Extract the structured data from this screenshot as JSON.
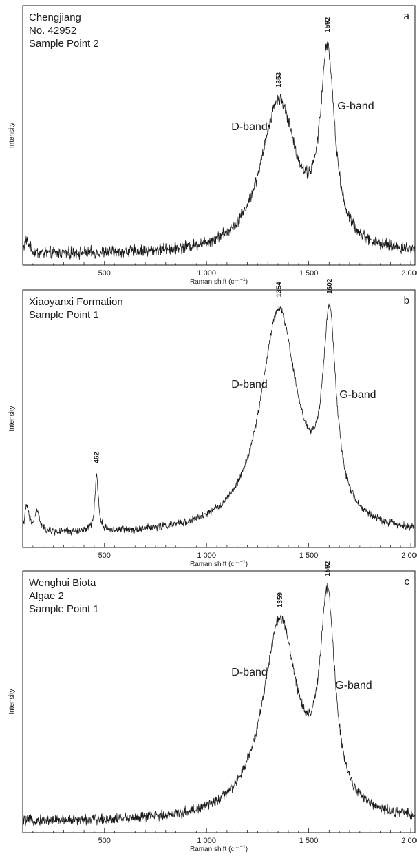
{
  "chart_data": [
    {
      "type": "line",
      "panel_letter": "a",
      "title_lines": [
        "Chengjiang",
        "No. 42952",
        "Sample Point 2"
      ],
      "xlabel": "Raman shift (cm",
      "xlabel_superscript": "−1",
      "xlabel_suffix": ")",
      "ylabel": "Intensity",
      "xlim": [
        100,
        2020
      ],
      "ylim": [
        0,
        1.0
      ],
      "xticks": [
        500,
        1000,
        1500,
        2000
      ],
      "xtick_labels": [
        "500",
        "1 000",
        "1 500",
        "2 000"
      ],
      "grid": false,
      "line_color": "#1a1a1a",
      "peaks": [
        {
          "x": 1353,
          "label": "1353"
        },
        {
          "x": 1592,
          "label": "1592"
        }
      ],
      "band_labels": [
        {
          "text": "D-band",
          "x": 1210,
          "y": 0.52
        },
        {
          "text": "G-band",
          "x": 1730,
          "y": 0.6
        }
      ],
      "series": [
        {
          "baseline": 0.04,
          "noise": 0.035,
          "components": [
            {
              "center": 1353,
              "height": 0.58,
              "width": 105
            },
            {
              "center": 1592,
              "height": 0.72,
              "width": 42
            },
            {
              "center": 120,
              "height": 0.05,
              "width": 15
            }
          ]
        }
      ]
    },
    {
      "type": "line",
      "panel_letter": "b",
      "title_lines": [
        "Xiaoyanxi Formation",
        "Sample Point 1"
      ],
      "xlabel": "Raman shift (cm",
      "xlabel_superscript": "−1",
      "xlabel_suffix": ")",
      "ylabel": "Intensity",
      "xlim": [
        100,
        2020
      ],
      "ylim": [
        0,
        1.0
      ],
      "xticks": [
        500,
        1000,
        1500,
        2000
      ],
      "xtick_labels": [
        "500",
        "1 000",
        "1 500",
        "2 000"
      ],
      "grid": false,
      "line_color": "#1a1a1a",
      "peaks": [
        {
          "x": 462,
          "label": "462"
        },
        {
          "x": 1354,
          "label": "1354"
        },
        {
          "x": 1602,
          "label": "1602"
        }
      ],
      "band_labels": [
        {
          "text": "D-band",
          "x": 1210,
          "y": 0.62
        },
        {
          "text": "G-band",
          "x": 1740,
          "y": 0.58
        }
      ],
      "series": [
        {
          "baseline": 0.05,
          "noise": 0.022,
          "components": [
            {
              "center": 1354,
              "height": 0.86,
              "width": 110
            },
            {
              "center": 1602,
              "height": 0.75,
              "width": 40
            },
            {
              "center": 462,
              "height": 0.22,
              "width": 10
            },
            {
              "center": 120,
              "height": 0.1,
              "width": 12
            },
            {
              "center": 170,
              "height": 0.08,
              "width": 15
            }
          ]
        }
      ]
    },
    {
      "type": "line",
      "panel_letter": "c",
      "title_lines": [
        "Wenghui Biota",
        "Algae 2",
        "Sample Point 1"
      ],
      "xlabel": "Raman shift (cm",
      "xlabel_superscript": "−1",
      "xlabel_suffix": ")",
      "ylabel": "Intensity",
      "xlim": [
        100,
        2020
      ],
      "ylim": [
        0,
        1.0
      ],
      "xticks": [
        500,
        1000,
        1500,
        2000
      ],
      "xtick_labels": [
        "500",
        "1 000",
        "1 500",
        "2 000"
      ],
      "grid": false,
      "line_color": "#1a1a1a",
      "peaks": [
        {
          "x": 1359,
          "label": "1359"
        },
        {
          "x": 1592,
          "label": "1592"
        }
      ],
      "band_labels": [
        {
          "text": "D-band",
          "x": 1210,
          "y": 0.6
        },
        {
          "text": "G-band",
          "x": 1720,
          "y": 0.55
        }
      ],
      "series": [
        {
          "baseline": 0.04,
          "noise": 0.03,
          "components": [
            {
              "center": 1359,
              "height": 0.75,
              "width": 105
            },
            {
              "center": 1592,
              "height": 0.77,
              "width": 45
            }
          ]
        }
      ]
    }
  ]
}
